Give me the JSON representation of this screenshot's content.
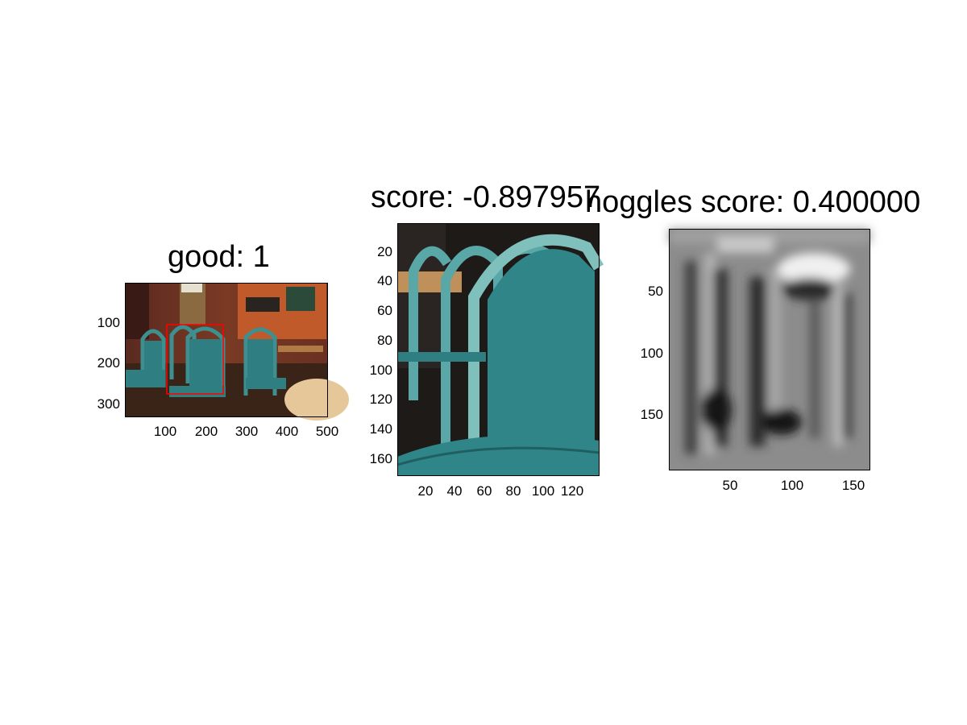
{
  "figure": {
    "panels": [
      {
        "title": "good: 1",
        "x_ticks": [
          "100",
          "200",
          "300",
          "400",
          "500"
        ],
        "y_ticks": [
          "100",
          "200",
          "300"
        ]
      },
      {
        "title": "score: -0.897957",
        "x_ticks": [
          "20",
          "40",
          "60",
          "80",
          "100",
          "120"
        ],
        "y_ticks": [
          "20",
          "40",
          "60",
          "80",
          "100",
          "120",
          "140",
          "160"
        ]
      },
      {
        "title": "hoggles score: 0.400000",
        "x_ticks": [
          "50",
          "100",
          "150"
        ],
        "y_ticks": [
          "50",
          "100",
          "150"
        ]
      }
    ]
  },
  "chart_data": [
    {
      "type": "heatmap",
      "title": "good: 1",
      "content": "color photograph",
      "xlim": [
        0,
        500
      ],
      "ylim": [
        0,
        330
      ],
      "xticks": [
        100,
        200,
        300,
        400,
        500
      ],
      "yticks": [
        100,
        200,
        300
      ],
      "annotations": [
        {
          "type": "rectangle",
          "color": "#ff0000",
          "x": [
            103,
            242
          ],
          "y": [
            103,
            275
          ]
        }
      ],
      "grid": false
    },
    {
      "type": "heatmap",
      "title": "score: -0.897957",
      "content": "color photograph crop",
      "xlim": [
        0,
        138
      ],
      "ylim": [
        0,
        172
      ],
      "xticks": [
        20,
        40,
        60,
        80,
        100,
        120
      ],
      "yticks": [
        20,
        40,
        60,
        80,
        100,
        120,
        140,
        160
      ],
      "grid": false
    },
    {
      "type": "heatmap",
      "title": "hoggles score: 0.400000",
      "content": "grayscale image",
      "xlim": [
        0,
        162
      ],
      "ylim": [
        0,
        195
      ],
      "xticks": [
        50,
        100,
        150
      ],
      "yticks": [
        50,
        100,
        150
      ],
      "grid": false
    }
  ]
}
